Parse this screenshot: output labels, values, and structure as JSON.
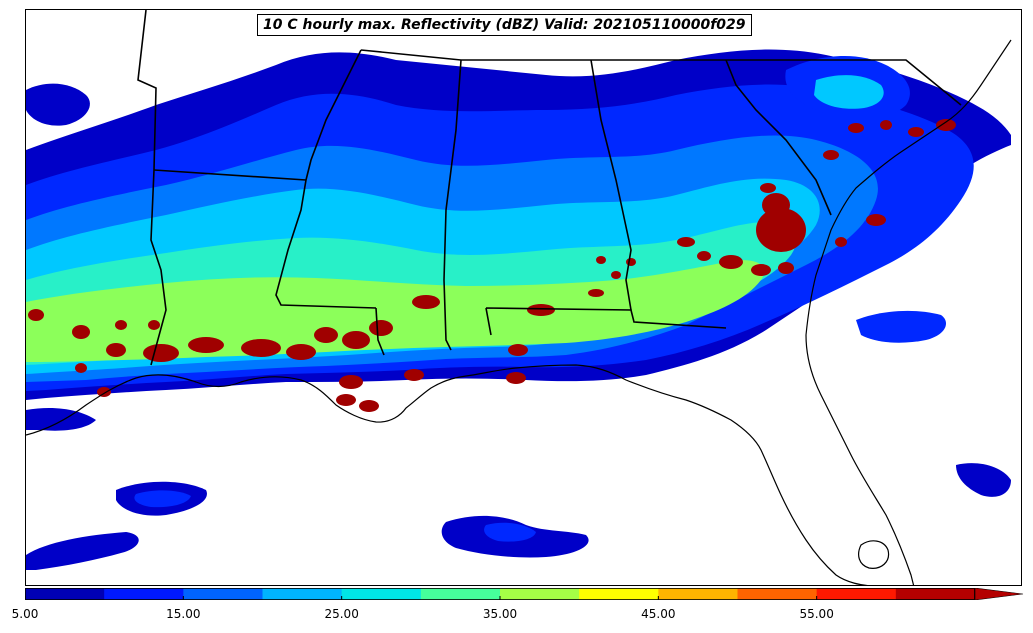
{
  "title": "10 C hourly max. Reflectivity (dBZ) Valid: 202105110000f029",
  "colorbar": {
    "colors": [
      "#0000b4",
      "#0019ff",
      "#0064ff",
      "#00b4ff",
      "#00e6e6",
      "#46ff9b",
      "#a5ff46",
      "#ffff00",
      "#ffb400",
      "#ff6400",
      "#ff1900",
      "#b40000"
    ],
    "extend": "max",
    "tick_labels": [
      "5.00",
      "15.00",
      "25.00",
      "35.00",
      "45.00",
      "55.00"
    ]
  },
  "palette": {
    "dbz_5": "#0000c8",
    "dbz_10": "#0028ff",
    "dbz_15": "#0078ff",
    "dbz_20": "#00c8ff",
    "dbz_25": "#28f0c8",
    "dbz_30": "#8cff5a",
    "dbz_35": "#ffff00",
    "dbz_55": "#a00000",
    "coast": "#000000",
    "state_lines": "#000000"
  }
}
